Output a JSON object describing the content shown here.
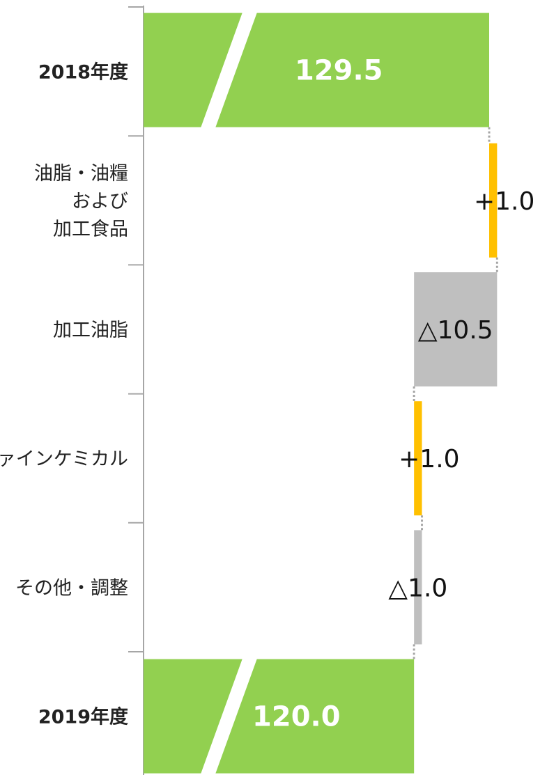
{
  "chart_data": {
    "type": "bar",
    "subtype": "waterfall",
    "orientation": "horizontal",
    "categories": [
      [
        "2018年度"
      ],
      [
        "油脂・油糧",
        "および",
        "加工食品"
      ],
      [
        "加工油脂"
      ],
      [
        "ファインケミカル"
      ],
      [
        "その他・調整"
      ],
      [
        "2019年度"
      ]
    ],
    "values": [
      129.5,
      1.0,
      -10.5,
      1.0,
      -1.0,
      120.0
    ],
    "kinds": [
      "total",
      "increase",
      "decrease",
      "increase",
      "decrease",
      "total"
    ],
    "value_labels": [
      "129.5",
      "+1.0",
      "△10.5",
      "+1.0",
      "△1.0",
      "120.0"
    ],
    "axis_break": true,
    "colors": {
      "total": "#92d050",
      "increase": "#ffc000",
      "decrease": "#bfbfbf",
      "connector": "#a6a6a6",
      "axis": "#a6a6a6"
    },
    "title": "",
    "xlabel": "",
    "ylabel": ""
  }
}
